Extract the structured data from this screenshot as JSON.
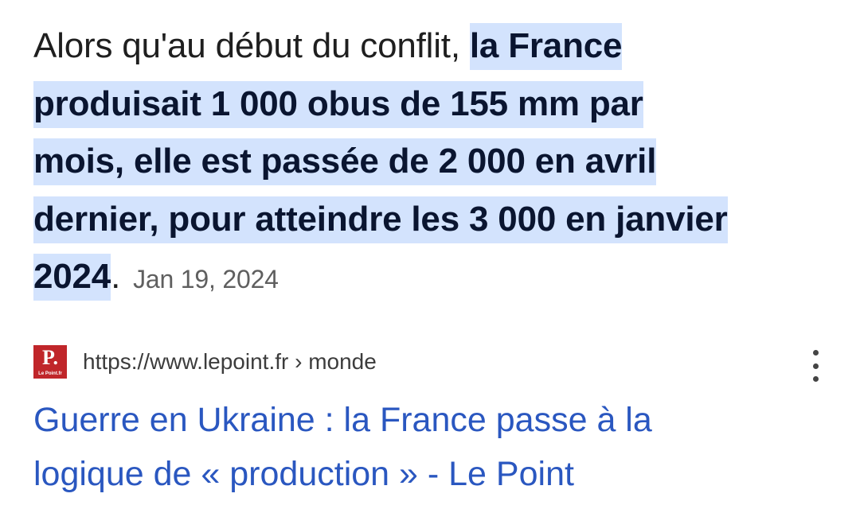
{
  "snippet": {
    "lines": [
      {
        "plain": "Alors qu'au début du conflit, ",
        "highlight": "la France"
      },
      {
        "plain": "",
        "highlight": "produisait 1 000 obus de 155 mm par"
      },
      {
        "plain": "",
        "highlight": "mois, elle est passée de 2 000 en avril"
      },
      {
        "plain": "",
        "highlight": "dernier, pour atteindre les 3 000 en janvier"
      },
      {
        "plain": "",
        "highlight": "2024",
        "after": "."
      }
    ],
    "date": "Jan 19, 2024",
    "highlight_color": "#d3e3fd"
  },
  "result": {
    "favicon": {
      "letter": "P.",
      "caption": "Le Point.fr",
      "color": "#c0262a"
    },
    "url": "https://www.lepoint.fr › monde",
    "more_icon": "more-vertical-icon",
    "title_lines": [
      "Guerre en Ukraine : la France passe à la",
      "logique de « production » - Le Point"
    ],
    "link_color": "#2a57c0"
  }
}
